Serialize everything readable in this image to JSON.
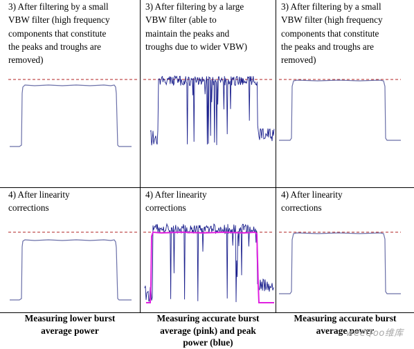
{
  "panels": [
    {
      "id": "r1c1",
      "text": "3) After filtering by a small\nVBW filter (high frequency\ncomponents that constitute\nthe peaks and troughs are\nremoved)"
    },
    {
      "id": "r1c2",
      "text": "3) After filtering by a large\nVBW filter (able to\nmaintain the peaks and\ntroughs due to wider VBW)"
    },
    {
      "id": "r1c3",
      "text": "3) After filtering by a small\nVBW filter (high frequency\ncomponents that constitute\nthe peaks and troughs are\nremoved)"
    },
    {
      "id": "r2c1",
      "text": "4) After linearity\ncorrections"
    },
    {
      "id": "r2c2",
      "text": "4) After linearity\ncorrections"
    },
    {
      "id": "r2c3",
      "text": "4) After linearity\ncorrections"
    }
  ],
  "captions": [
    "Measuring lower burst\naverage power",
    "Measuring accurate burst\naverage (pink) and peak\npower (blue)",
    "Measuring accurate burst\naverage power"
  ],
  "watermark": "weeQoo维库",
  "colors": {
    "trace": "#6a6fa8",
    "noisy_trace": "#1a1f8c",
    "reference_line": "#b22222",
    "average_trace": "#e020e0",
    "grid": "#000000"
  }
}
